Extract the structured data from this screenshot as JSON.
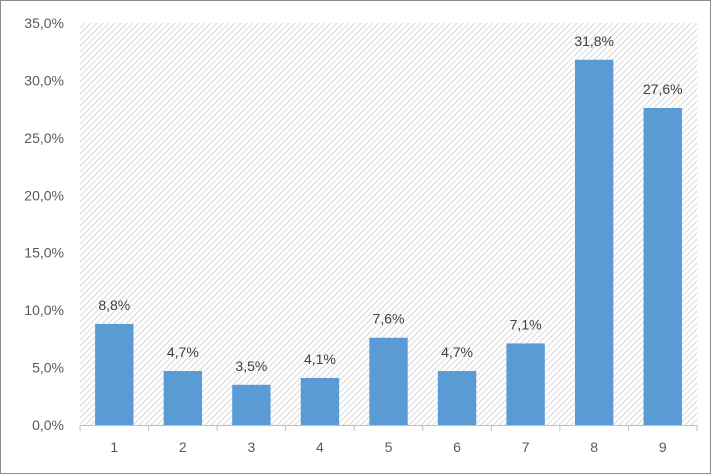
{
  "chart_data": {
    "type": "bar",
    "categories": [
      "1",
      "2",
      "3",
      "4",
      "5",
      "6",
      "7",
      "8",
      "9"
    ],
    "values": [
      8.8,
      4.7,
      3.5,
      4.1,
      7.6,
      4.7,
      7.1,
      31.8,
      27.6
    ],
    "data_labels": [
      "8,8%",
      "4,7%",
      "3,5%",
      "4,1%",
      "7,6%",
      "4,7%",
      "7,1%",
      "31,8%",
      "27,6%"
    ],
    "ylim": [
      0,
      35
    ],
    "yticks": [
      0,
      5,
      10,
      15,
      20,
      25,
      30,
      35
    ],
    "ytick_labels": [
      "0,0%",
      "5,0%",
      "10,0%",
      "15,0%",
      "20,0%",
      "25,0%",
      "30,0%",
      "35,0%"
    ],
    "title": "",
    "xlabel": "",
    "ylabel": "",
    "grid": false,
    "plot_area_pattern": "diagonal-hatch",
    "colors": {
      "bar": "#5b9bd5",
      "axis": "#bfbfbf",
      "hatch": "#d9d9d9"
    }
  }
}
